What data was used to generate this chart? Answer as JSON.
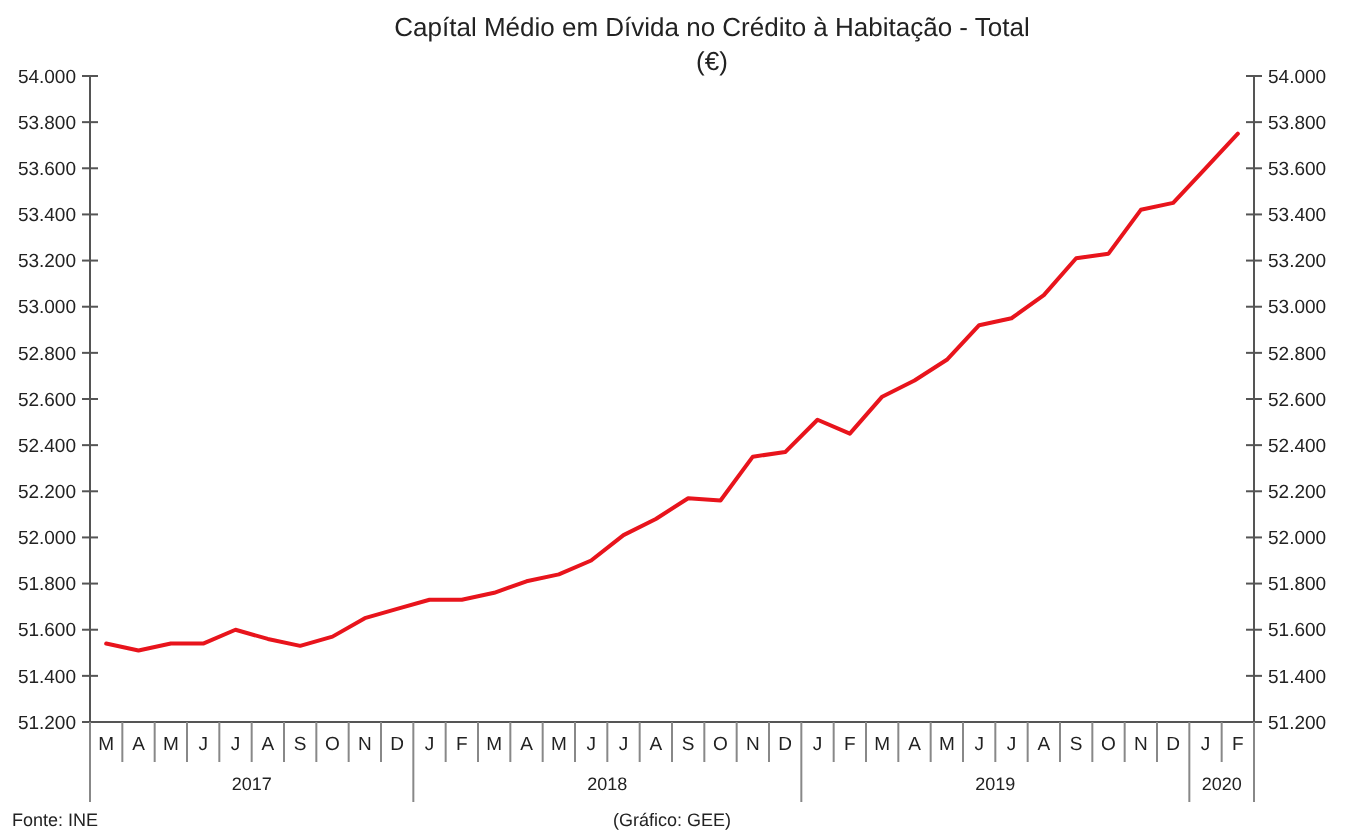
{
  "chart_data": {
    "type": "line",
    "title": "Capítal Médio em Dívida no Crédito à Habitação - Total",
    "subtitle": "(€)",
    "categories": [
      "M",
      "A",
      "M",
      "J",
      "J",
      "A",
      "S",
      "O",
      "N",
      "D",
      "J",
      "F",
      "M",
      "A",
      "M",
      "J",
      "J",
      "A",
      "S",
      "O",
      "N",
      "D",
      "J",
      "F",
      "M",
      "A",
      "M",
      "J",
      "J",
      "A",
      "S",
      "O",
      "N",
      "D",
      "J",
      "F"
    ],
    "series": [
      {
        "color": "#e8141c",
        "values": [
          51540,
          51510,
          51540,
          51540,
          51600,
          51560,
          51530,
          51570,
          51650,
          51690,
          51730,
          51730,
          51760,
          51810,
          51840,
          51900,
          52010,
          52080,
          52170,
          52160,
          52350,
          52370,
          52510,
          52450,
          52610,
          52680,
          52770,
          52920,
          52950,
          53050,
          53210,
          53230,
          53420,
          53450,
          53600,
          53750
        ]
      }
    ],
    "ylim": [
      51200,
      54000
    ],
    "yticks": [
      {
        "value": 51200,
        "label": "51.200"
      },
      {
        "value": 51400,
        "label": "51.400"
      },
      {
        "value": 51600,
        "label": "51.600"
      },
      {
        "value": 51800,
        "label": "51.800"
      },
      {
        "value": 52000,
        "label": "52.000"
      },
      {
        "value": 52200,
        "label": "52.200"
      },
      {
        "value": 52400,
        "label": "52.400"
      },
      {
        "value": 52600,
        "label": "52.600"
      },
      {
        "value": 52800,
        "label": "52.800"
      },
      {
        "value": 53000,
        "label": "53.000"
      },
      {
        "value": 53200,
        "label": "53.200"
      },
      {
        "value": 53400,
        "label": "53.400"
      },
      {
        "value": 53600,
        "label": "53.600"
      },
      {
        "value": 53800,
        "label": "53.800"
      },
      {
        "value": 54000,
        "label": "54.000"
      }
    ],
    "y2lim": [
      51200,
      54000
    ],
    "y2ticks": [
      {
        "value": 51200,
        "label": "51.200"
      },
      {
        "value": 51400,
        "label": "51.400"
      },
      {
        "value": 51600,
        "label": "51.600"
      },
      {
        "value": 51800,
        "label": "51.800"
      },
      {
        "value": 52000,
        "label": "52.000"
      },
      {
        "value": 52200,
        "label": "52.200"
      },
      {
        "value": 52400,
        "label": "52.400"
      },
      {
        "value": 52600,
        "label": "52.600"
      },
      {
        "value": 52800,
        "label": "52.800"
      },
      {
        "value": 53000,
        "label": "53.000"
      },
      {
        "value": 53200,
        "label": "53.200"
      },
      {
        "value": 53400,
        "label": "53.400"
      },
      {
        "value": 53600,
        "label": "53.600"
      },
      {
        "value": 53800,
        "label": "53.800"
      },
      {
        "value": 54000,
        "label": "54.000"
      }
    ],
    "grid": false,
    "marker": "none",
    "line_style": "solid",
    "annotations": [
      "2017",
      "2018",
      "2019",
      "2020",
      "Fonte: INE",
      "(Gráfico: GEE)"
    ]
  }
}
